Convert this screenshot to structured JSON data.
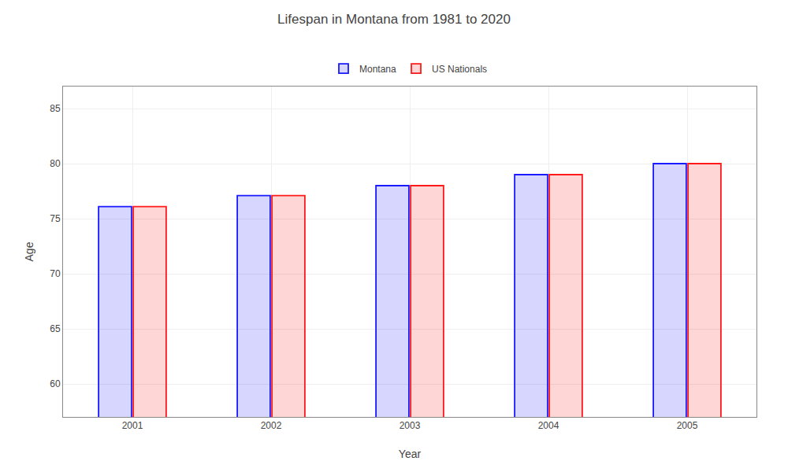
{
  "chart_data": {
    "type": "bar",
    "title": "Lifespan in Montana from 1981 to 2020",
    "xlabel": "Year",
    "ylabel": "Age",
    "categories": [
      "2001",
      "2002",
      "2003",
      "2004",
      "2005"
    ],
    "series": [
      {
        "name": "Montana",
        "color": "#1a1aff",
        "values": [
          76.1,
          77.1,
          78.0,
          79.0,
          80.0
        ]
      },
      {
        "name": "US Nationals",
        "color": "#ff1a1a",
        "values": [
          76.1,
          77.1,
          78.0,
          79.0,
          80.0
        ]
      }
    ],
    "ylim": [
      57,
      87
    ],
    "yticks": [
      60,
      65,
      70,
      75,
      80,
      85
    ],
    "grid": true,
    "legend": "top"
  }
}
